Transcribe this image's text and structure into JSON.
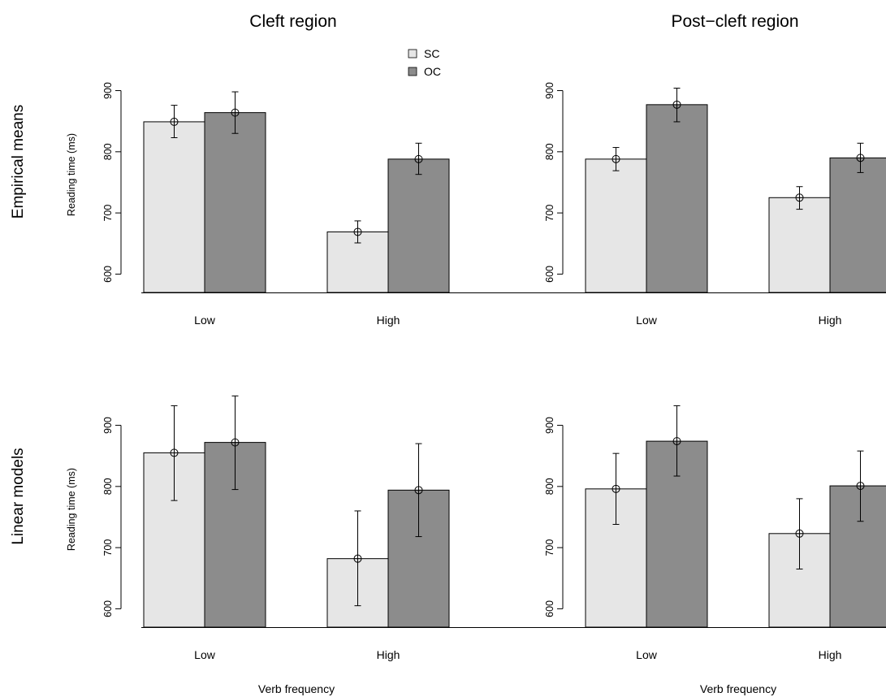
{
  "column_titles": [
    "Cleft region",
    "Post−cleft region"
  ],
  "row_titles": [
    "Empirical means",
    "Linear models"
  ],
  "colors": {
    "SC": "#e6e6e6",
    "OC": "#8c8c8c",
    "axis": "#000000"
  },
  "legend": {
    "placement": "top-right of first panel",
    "entries": [
      "SC",
      "OC"
    ]
  },
  "chart_data": [
    {
      "type": "bar",
      "panel": "Cleft region / Empirical means",
      "title": "Cleft region",
      "row_label": "Empirical means",
      "ylabel": "Reading time (ms)",
      "xlabel": "",
      "ylim": [
        570,
        910
      ],
      "yticks": [
        600,
        700,
        800,
        900
      ],
      "categories": [
        "Low",
        "High"
      ],
      "series": [
        {
          "name": "SC",
          "values": [
            849,
            669
          ],
          "ci_low": [
            823,
            651
          ],
          "ci_high": [
            876,
            687
          ]
        },
        {
          "name": "OC",
          "values": [
            864,
            788
          ],
          "ci_low": [
            830,
            763
          ],
          "ci_high": [
            898,
            814
          ]
        }
      ]
    },
    {
      "type": "bar",
      "panel": "Post-cleft region / Empirical means",
      "title": "Post−cleft region",
      "row_label": "Empirical means",
      "ylabel": "",
      "xlabel": "",
      "ylim": [
        570,
        910
      ],
      "yticks": [
        600,
        700,
        800,
        900
      ],
      "categories": [
        "Low",
        "High"
      ],
      "series": [
        {
          "name": "SC",
          "values": [
            788,
            725
          ],
          "ci_low": [
            769,
            706
          ],
          "ci_high": [
            807,
            743
          ]
        },
        {
          "name": "OC",
          "values": [
            877,
            790
          ],
          "ci_low": [
            849,
            766
          ],
          "ci_high": [
            904,
            814
          ]
        }
      ]
    },
    {
      "type": "bar",
      "panel": "Cleft region / Linear models",
      "title": "",
      "row_label": "Linear models",
      "ylabel": "Reading time (ms)",
      "xlabel": "Verb frequency",
      "ylim": [
        570,
        910
      ],
      "yticks": [
        600,
        700,
        800,
        900
      ],
      "categories": [
        "Low",
        "High"
      ],
      "series": [
        {
          "name": "SC",
          "values": [
            855,
            682
          ],
          "ci_low": [
            777,
            605
          ],
          "ci_high": [
            932,
            760
          ]
        },
        {
          "name": "OC",
          "values": [
            872,
            794
          ],
          "ci_low": [
            795,
            718
          ],
          "ci_high": [
            948,
            870
          ]
        }
      ]
    },
    {
      "type": "bar",
      "panel": "Post-cleft region / Linear models",
      "title": "",
      "row_label": "Linear models",
      "ylabel": "",
      "xlabel": "Verb frequency",
      "ylim": [
        570,
        910
      ],
      "yticks": [
        600,
        700,
        800,
        900
      ],
      "categories": [
        "Low",
        "High"
      ],
      "series": [
        {
          "name": "SC",
          "values": [
            796,
            723
          ],
          "ci_low": [
            738,
            665
          ],
          "ci_high": [
            854,
            780
          ]
        },
        {
          "name": "OC",
          "values": [
            874,
            801
          ],
          "ci_low": [
            817,
            743
          ],
          "ci_high": [
            932,
            858
          ]
        }
      ]
    }
  ]
}
